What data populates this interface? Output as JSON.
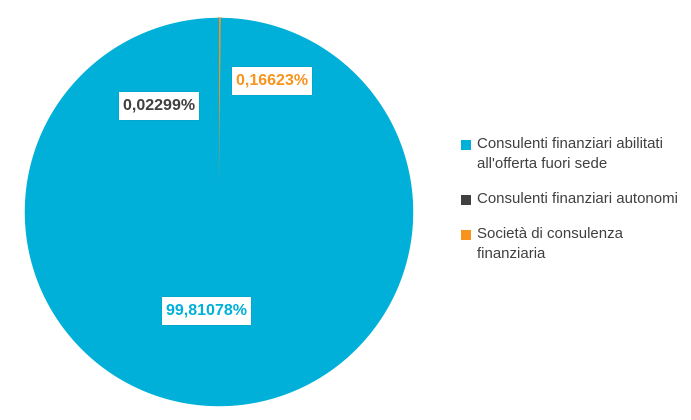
{
  "chart_data": {
    "type": "pie",
    "title": "",
    "categories": [
      "Consulenti finanziari abilitati all'offerta fuori sede",
      "Consulenti finanziari autonomi",
      "Società di consulenza finanziaria"
    ],
    "values": [
      99.81078,
      0.02299,
      0.16623
    ],
    "labels": [
      "99,81078%",
      "0,02299%",
      "0,16623%"
    ],
    "colors": [
      "#00B0D8",
      "#404040",
      "#F7941D"
    ],
    "legend_position": "right"
  }
}
